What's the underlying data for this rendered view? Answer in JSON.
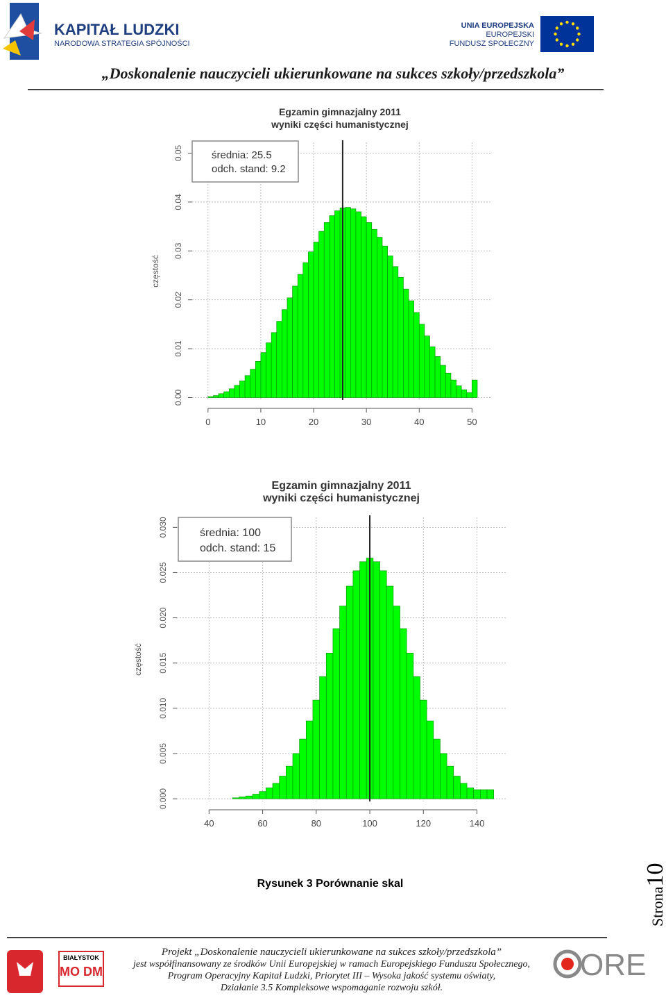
{
  "header": {
    "logo_title": "KAPITAŁ LUDZKI",
    "logo_subtitle": "NARODOWA STRATEGIA SPÓJNOŚCI",
    "eu_lines": [
      "UNIA EUROPEJSKA",
      "EUROPEJSKI",
      "FUNDUSZ SPOŁECZNY"
    ],
    "title": "„Doskonalenie nauczycieli ukierunkowane na sukces szkoły/przedszkola”"
  },
  "chart_data": [
    {
      "type": "histogram",
      "title": "Egzamin gimnazjalny 2011",
      "subtitle": "wyniki części humanistycznej",
      "y_label": "częstość",
      "annotations": [
        "średnia: 25.5",
        "odch. stand: 9.2"
      ],
      "mean_line": 25.5,
      "color": "#00ff00",
      "edge_color": "#009900",
      "grid": true,
      "bins": [
        0,
        1,
        2,
        3,
        4,
        5,
        6,
        7,
        8,
        9,
        10,
        11,
        12,
        13,
        14,
        15,
        16,
        17,
        18,
        19,
        20,
        21,
        22,
        23,
        24,
        25,
        26,
        27,
        28,
        29,
        30,
        31,
        32,
        33,
        34,
        35,
        36,
        37,
        38,
        39,
        40,
        41,
        42,
        43,
        44,
        45,
        46,
        47,
        48,
        49,
        50,
        51
      ],
      "values": [
        0.0002,
        0.0004,
        0.0008,
        0.0012,
        0.0018,
        0.0025,
        0.0034,
        0.0045,
        0.0058,
        0.0074,
        0.0092,
        0.0112,
        0.0133,
        0.0156,
        0.018,
        0.0204,
        0.0228,
        0.0252,
        0.0276,
        0.0298,
        0.0318,
        0.034,
        0.0358,
        0.0372,
        0.0382,
        0.0388,
        0.0389,
        0.0386,
        0.038,
        0.037,
        0.0358,
        0.0344,
        0.0328,
        0.031,
        0.029,
        0.0268,
        0.0246,
        0.0222,
        0.0198,
        0.0174,
        0.015,
        0.0126,
        0.0104,
        0.0084,
        0.0066,
        0.005,
        0.0036,
        0.0024,
        0.0016,
        0.001,
        0.0036
      ],
      "xlim": [
        -3,
        53.5
      ],
      "ylim": [
        -0.0005,
        0.0522
      ],
      "xticks": [
        0,
        10,
        20,
        30,
        40,
        50
      ],
      "yticks": [
        {
          "value": 0,
          "label": "0.00"
        },
        0.01,
        0.02,
        0.03,
        0.04,
        0.05
      ]
    },
    {
      "type": "histogram",
      "title": "Egzamin gimnazjalny  2011",
      "subtitle": "wyniki części humanistycznej",
      "y_label": "częstość",
      "annotations": [
        "średnia: 100",
        "odch. stand: 15"
      ],
      "mean_line": 100,
      "color": "#00ff00",
      "edge_color": "#009900",
      "grid": true,
      "bins": [
        48.75,
        51.25,
        53.75,
        56.25,
        58.75,
        61.25,
        63.75,
        66.25,
        68.75,
        71.25,
        73.75,
        76.25,
        78.75,
        81.25,
        83.75,
        86.25,
        88.75,
        91.25,
        93.75,
        96.25,
        98.75,
        101.25,
        103.75,
        106.25,
        108.75,
        111.25,
        113.75,
        116.25,
        118.75,
        121.25,
        123.75,
        126.25,
        128.75,
        131.25,
        133.75,
        136.25,
        138.75,
        141.25,
        143.75,
        146.25
      ],
      "values": [
        0.0001,
        0.0002,
        0.0003,
        0.0005,
        0.0008,
        0.0012,
        0.0017,
        0.0025,
        0.0036,
        0.005,
        0.0066,
        0.0086,
        0.0109,
        0.0135,
        0.0161,
        0.0188,
        0.0213,
        0.0235,
        0.0252,
        0.0262,
        0.0266,
        0.0262,
        0.0252,
        0.0235,
        0.0213,
        0.0188,
        0.0161,
        0.0135,
        0.0109,
        0.0086,
        0.0066,
        0.005,
        0.0036,
        0.0025,
        0.0017,
        0.0012,
        0.001,
        0.001,
        0.001
      ],
      "xlim": [
        28,
        151
      ],
      "ylim": [
        -0.0003,
        0.0311
      ],
      "xticks": [
        40,
        60,
        80,
        100,
        120,
        140
      ],
      "yticks": [
        {
          "value": 0,
          "label": "0.000"
        },
        0.005,
        {
          "value": 0.01,
          "label": "0.010"
        },
        0.015,
        {
          "value": 0.02,
          "label": "0.020"
        },
        0.025,
        {
          "value": 0.03,
          "label": "0.030"
        }
      ]
    }
  ],
  "caption": "Rysunek 3 Porównanie skal",
  "page_label": "Strona",
  "page_number": "10",
  "footer": {
    "lines": [
      "Projekt „Doskonalenie nauczycieli ukierunkowane na sukces szkoły/przedszkola”",
      "jest współfinansowany ze środków Unii Europejskiej w ramach Europejskiego Funduszu Społecznego,",
      "Program Operacyjny Kapitał Ludzki, Priorytet III – Wysoka jakość systemu oświaty,",
      "Działanie 3.5 Kompleksowe wspomaganie rozwoju szkół."
    ],
    "modm_city": "BIAŁYSTOK",
    "modm_name": "MO DM",
    "ore": "ORE"
  }
}
